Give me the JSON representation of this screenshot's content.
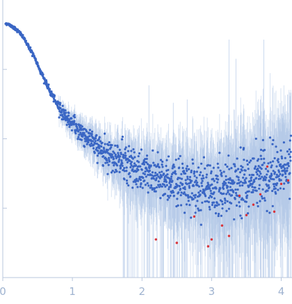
{
  "chart_data": {
    "type": "scatter",
    "title": "",
    "xlabel": "",
    "ylabel": "",
    "xlim": [
      0,
      4.15
    ],
    "log_y": true,
    "ylim_decades": [
      0,
      4
    ],
    "x_ticks": [
      {
        "value": 0,
        "label": "0"
      },
      {
        "value": 1,
        "label": "1"
      },
      {
        "value": 2,
        "label": "2"
      },
      {
        "value": 3,
        "label": "3"
      },
      {
        "value": 4,
        "label": "4"
      }
    ],
    "y_tick_decades": [
      1,
      2,
      3
    ],
    "grid": false,
    "colors": {
      "points": "#3a66c4",
      "outliers": "#d8333a",
      "error_bars": "#a9c0e4",
      "axis": "#b9c7dd"
    },
    "series": [
      {
        "points": [
          [
            0.05,
            3.66
          ],
          [
            0.1,
            3.64
          ],
          [
            0.15,
            3.61
          ],
          [
            0.2,
            3.57
          ],
          [
            0.25,
            3.52
          ],
          [
            0.3,
            3.45
          ],
          [
            0.35,
            3.37
          ],
          [
            0.4,
            3.28
          ],
          [
            0.45,
            3.18
          ],
          [
            0.5,
            3.07
          ],
          [
            0.55,
            2.96
          ],
          [
            0.6,
            2.85
          ],
          [
            0.65,
            2.74
          ],
          [
            0.7,
            2.64
          ],
          [
            0.75,
            2.55
          ],
          [
            0.8,
            2.47
          ],
          [
            0.85,
            2.39
          ],
          [
            0.9,
            2.33
          ],
          [
            0.95,
            2.27
          ],
          [
            1.0,
            2.22
          ],
          [
            1.1,
            2.12
          ],
          [
            1.2,
            2.03
          ],
          [
            1.3,
            1.95
          ],
          [
            1.4,
            1.87
          ],
          [
            1.5,
            1.8
          ],
          [
            1.6,
            1.74
          ],
          [
            1.7,
            1.68
          ],
          [
            1.8,
            1.62
          ],
          [
            1.9,
            1.57
          ],
          [
            2.0,
            1.53
          ],
          [
            2.2,
            1.45
          ],
          [
            2.4,
            1.38
          ],
          [
            2.6,
            1.34
          ],
          [
            2.8,
            1.3
          ],
          [
            3.0,
            1.3
          ],
          [
            3.2,
            1.3
          ],
          [
            3.4,
            1.32
          ],
          [
            3.6,
            1.37
          ],
          [
            3.8,
            1.45
          ],
          [
            4.0,
            1.55
          ],
          [
            4.1,
            1.6
          ]
        ]
      }
    ],
    "outlier_points": [
      [
        2.2,
        0.55
      ],
      [
        2.5,
        0.5
      ],
      [
        2.75,
        0.88
      ],
      [
        2.95,
        0.45
      ],
      [
        3.0,
        0.55
      ],
      [
        3.15,
        0.75
      ],
      [
        3.25,
        0.6
      ],
      [
        3.4,
        1.18
      ],
      [
        3.5,
        0.9
      ],
      [
        3.6,
        1.05
      ],
      [
        3.7,
        1.2
      ],
      [
        3.8,
        1.6
      ],
      [
        3.9,
        0.95
      ],
      [
        4.0,
        1.35
      ],
      [
        4.1,
        1.4
      ]
    ]
  }
}
